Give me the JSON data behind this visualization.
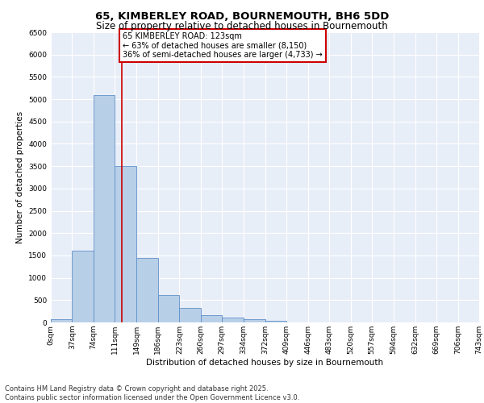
{
  "title_line1": "65, KIMBERLEY ROAD, BOURNEMOUTH, BH6 5DD",
  "title_line2": "Size of property relative to detached houses in Bournemouth",
  "xlabel": "Distribution of detached houses by size in Bournemouth",
  "ylabel": "Number of detached properties",
  "bar_color": "#b8cfe8",
  "bar_edge_color": "#6090c8",
  "background_color": "#e8eef8",
  "grid_color": "#ffffff",
  "property_size": 123,
  "property_line_color": "#cc0000",
  "annotation_text": "65 KIMBERLEY ROAD: 123sqm\n← 63% of detached houses are smaller (8,150)\n36% of semi-detached houses are larger (4,733) →",
  "annotation_box_color": "#cc0000",
  "bins": [
    0,
    37,
    74,
    111,
    149,
    186,
    223,
    260,
    297,
    334,
    372,
    409,
    446,
    483,
    520,
    557,
    594,
    632,
    669,
    706,
    743
  ],
  "bin_labels": [
    "0sqm",
    "37sqm",
    "74sqm",
    "111sqm",
    "149sqm",
    "186sqm",
    "223sqm",
    "260sqm",
    "297sqm",
    "334sqm",
    "372sqm",
    "409sqm",
    "446sqm",
    "483sqm",
    "520sqm",
    "557sqm",
    "594sqm",
    "632sqm",
    "669sqm",
    "706sqm",
    "743sqm"
  ],
  "counts": [
    70,
    1600,
    5100,
    3500,
    1450,
    620,
    320,
    160,
    110,
    80,
    40,
    0,
    0,
    0,
    0,
    0,
    0,
    0,
    0,
    0
  ],
  "ylim": [
    0,
    6500
  ],
  "yticks": [
    0,
    500,
    1000,
    1500,
    2000,
    2500,
    3000,
    3500,
    4000,
    4500,
    5000,
    5500,
    6000,
    6500
  ],
  "footnote": "Contains HM Land Registry data © Crown copyright and database right 2025.\nContains public sector information licensed under the Open Government Licence v3.0.",
  "title_fontsize": 9.5,
  "subtitle_fontsize": 8.5,
  "axis_label_fontsize": 7.5,
  "tick_fontsize": 6.5,
  "footnote_fontsize": 6,
  "annotation_fontsize": 7
}
